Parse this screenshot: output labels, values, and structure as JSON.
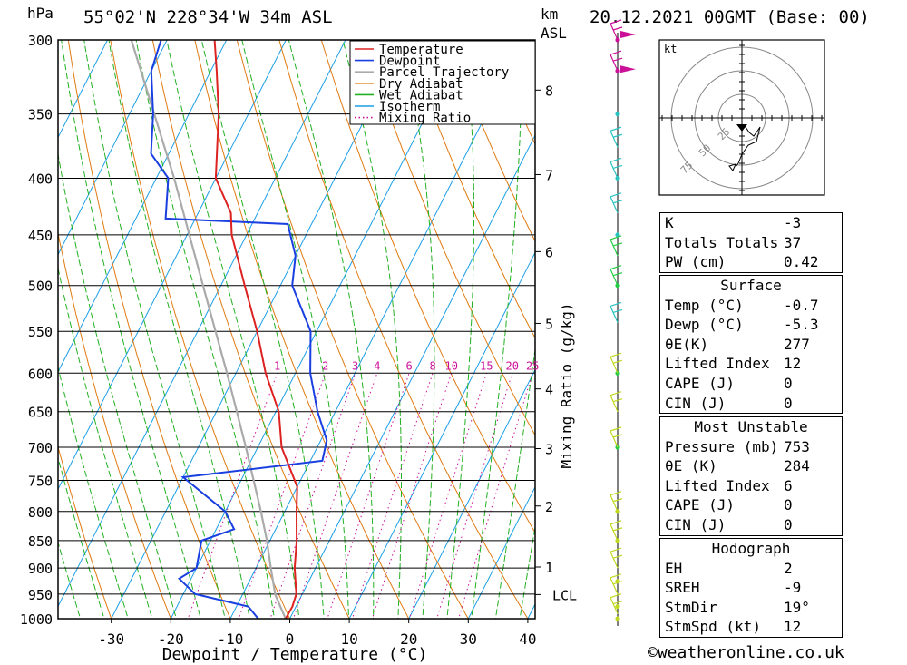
{
  "header": {
    "pressure_unit": "hPa",
    "location": "55°02'N  228°34'W  34m  ASL",
    "km_label_1": "km",
    "km_label_2": "ASL",
    "datetime": "20.12.2021  00GMT  (Base: 00)"
  },
  "chart_data": {
    "type": "skew-t",
    "xlabel": "Dewpoint / Temperature (°C)",
    "ylabel": "hPa",
    "right_axis_label": "Mixing Ratio (g/kg)",
    "xlim": [
      -40,
      40
    ],
    "ylim": [
      1000,
      300
    ],
    "log_pressure_axis": true,
    "x_ticks": [
      -30,
      -20,
      -10,
      0,
      10,
      20,
      30,
      40
    ],
    "pressure_levels": [
      300,
      350,
      400,
      450,
      500,
      550,
      600,
      650,
      700,
      750,
      800,
      850,
      900,
      950,
      1000
    ],
    "height_ticks": [
      {
        "km": "8",
        "p": 333
      },
      {
        "km": "7",
        "p": 397
      },
      {
        "km": "6",
        "p": 466
      },
      {
        "km": "5",
        "p": 541
      },
      {
        "km": "4",
        "p": 620
      },
      {
        "km": "3",
        "p": 702
      },
      {
        "km": "2",
        "p": 791
      },
      {
        "km": "1",
        "p": 898
      }
    ],
    "lcl": {
      "label": "LCL",
      "p": 951
    },
    "mixing_ratio_labels": [
      "1",
      "2",
      "3",
      "4",
      "6",
      "8",
      "10",
      "15",
      "20",
      "25"
    ],
    "mixing_ratio_values": [
      1,
      2,
      3,
      4,
      6,
      8,
      10,
      15,
      20,
      25
    ],
    "legend": {
      "position": "top-right",
      "entries": [
        {
          "name": "Temperature",
          "color": "#dd2222",
          "style": "solid"
        },
        {
          "name": "Dewpoint",
          "color": "#1a3fe0",
          "style": "solid"
        },
        {
          "name": "Parcel Trajectory",
          "color": "#aaaaaa",
          "style": "solid"
        },
        {
          "name": "Dry Adiabat",
          "color": "#e07a10",
          "style": "solid"
        },
        {
          "name": "Wet Adiabat",
          "color": "#22b022",
          "style": "solid"
        },
        {
          "name": "Isotherm",
          "color": "#1a9ee6",
          "style": "solid"
        },
        {
          "name": "Mixing Ratio",
          "color": "#cc1199",
          "style": "dotted"
        }
      ]
    },
    "temperature": [
      {
        "p": 1000,
        "t": -0.7
      },
      {
        "p": 975,
        "t": -0.6
      },
      {
        "p": 950,
        "t": -1.0
      },
      {
        "p": 900,
        "t": -3.5
      },
      {
        "p": 850,
        "t": -5.5
      },
      {
        "p": 800,
        "t": -8.0
      },
      {
        "p": 760,
        "t": -10.0
      },
      {
        "p": 700,
        "t": -16.0
      },
      {
        "p": 650,
        "t": -19.5
      },
      {
        "p": 600,
        "t": -25.0
      },
      {
        "p": 550,
        "t": -30.0
      },
      {
        "p": 500,
        "t": -36.0
      },
      {
        "p": 450,
        "t": -42.5
      },
      {
        "p": 430,
        "t": -44.5
      },
      {
        "p": 400,
        "t": -50.0
      },
      {
        "p": 350,
        "t": -55.0
      },
      {
        "p": 320,
        "t": -59.0
      },
      {
        "p": 300,
        "t": -62.0
      }
    ],
    "dewpoint": [
      {
        "p": 1000,
        "t": -5.3
      },
      {
        "p": 975,
        "t": -8.0
      },
      {
        "p": 950,
        "t": -18.0
      },
      {
        "p": 920,
        "t": -22.0
      },
      {
        "p": 900,
        "t": -20.0
      },
      {
        "p": 850,
        "t": -21.5
      },
      {
        "p": 830,
        "t": -17.0
      },
      {
        "p": 800,
        "t": -20.0
      },
      {
        "p": 745,
        "t": -30.0
      },
      {
        "p": 720,
        "t": -8.0
      },
      {
        "p": 690,
        "t": -9.0
      },
      {
        "p": 650,
        "t": -13.0
      },
      {
        "p": 600,
        "t": -17.5
      },
      {
        "p": 550,
        "t": -21.0
      },
      {
        "p": 500,
        "t": -28.0
      },
      {
        "p": 470,
        "t": -30.0
      },
      {
        "p": 440,
        "t": -34.0
      },
      {
        "p": 435,
        "t": -55.0
      },
      {
        "p": 400,
        "t": -58.0
      },
      {
        "p": 380,
        "t": -63.0
      },
      {
        "p": 350,
        "t": -66.0
      },
      {
        "p": 320,
        "t": -70.0
      },
      {
        "p": 300,
        "t": -71.0
      }
    ],
    "parcel": [
      {
        "p": 1000,
        "t": -0.7
      },
      {
        "p": 951,
        "t": -4.5
      },
      {
        "p": 900,
        "t": -7.5
      },
      {
        "p": 850,
        "t": -10.5
      },
      {
        "p": 800,
        "t": -14.0
      },
      {
        "p": 700,
        "t": -22.0
      },
      {
        "p": 600,
        "t": -31.5
      },
      {
        "p": 500,
        "t": -43.0
      },
      {
        "p": 400,
        "t": -57.0
      },
      {
        "p": 300,
        "t": -76.0
      }
    ]
  },
  "winds_profile": {
    "colors": [
      "#c0d820",
      "#c0d820",
      "#c0d820",
      "#c0d820",
      "#c0d820",
      "#22cc44",
      "#22cc44",
      "#22cc44",
      "#2ac3c0",
      "#2ac3c0",
      "#2ac3c0",
      "#cc1199",
      "#cc1199",
      "#cc1199"
    ]
  },
  "hodograph": {
    "unit": "kt",
    "ring_labels": [
      "25",
      "50",
      "75"
    ]
  },
  "stats": {
    "k": {
      "label": "K",
      "value": "-3"
    },
    "totals": {
      "label": "Totals Totals",
      "value": "37"
    },
    "pw": {
      "label": "PW (cm)",
      "value": "0.42"
    },
    "surface": {
      "title": "Surface",
      "rows": [
        {
          "label": "Temp (°C)",
          "value": "-0.7"
        },
        {
          "label": "Dewp (°C)",
          "value": "-5.3"
        },
        {
          "label": "θE(K)",
          "value": "277"
        },
        {
          "label": "Lifted Index",
          "value": "12"
        },
        {
          "label": "CAPE (J)",
          "value": "0"
        },
        {
          "label": "CIN (J)",
          "value": "0"
        }
      ]
    },
    "most_unstable": {
      "title": "Most Unstable",
      "rows": [
        {
          "label": "Pressure (mb)",
          "value": "753"
        },
        {
          "label": "θE (K)",
          "value": "284"
        },
        {
          "label": "Lifted Index",
          "value": "6"
        },
        {
          "label": "CAPE (J)",
          "value": "0"
        },
        {
          "label": "CIN (J)",
          "value": "0"
        }
      ]
    },
    "hodograph_section": {
      "title": "Hodograph",
      "rows": [
        {
          "label": "EH",
          "value": "2"
        },
        {
          "label": "SREH",
          "value": "-9"
        },
        {
          "label": "StmDir",
          "value": "19°"
        },
        {
          "label": "StmSpd (kt)",
          "value": "12"
        }
      ]
    }
  },
  "footer": {
    "credit": "©weatheronline.co.uk"
  }
}
